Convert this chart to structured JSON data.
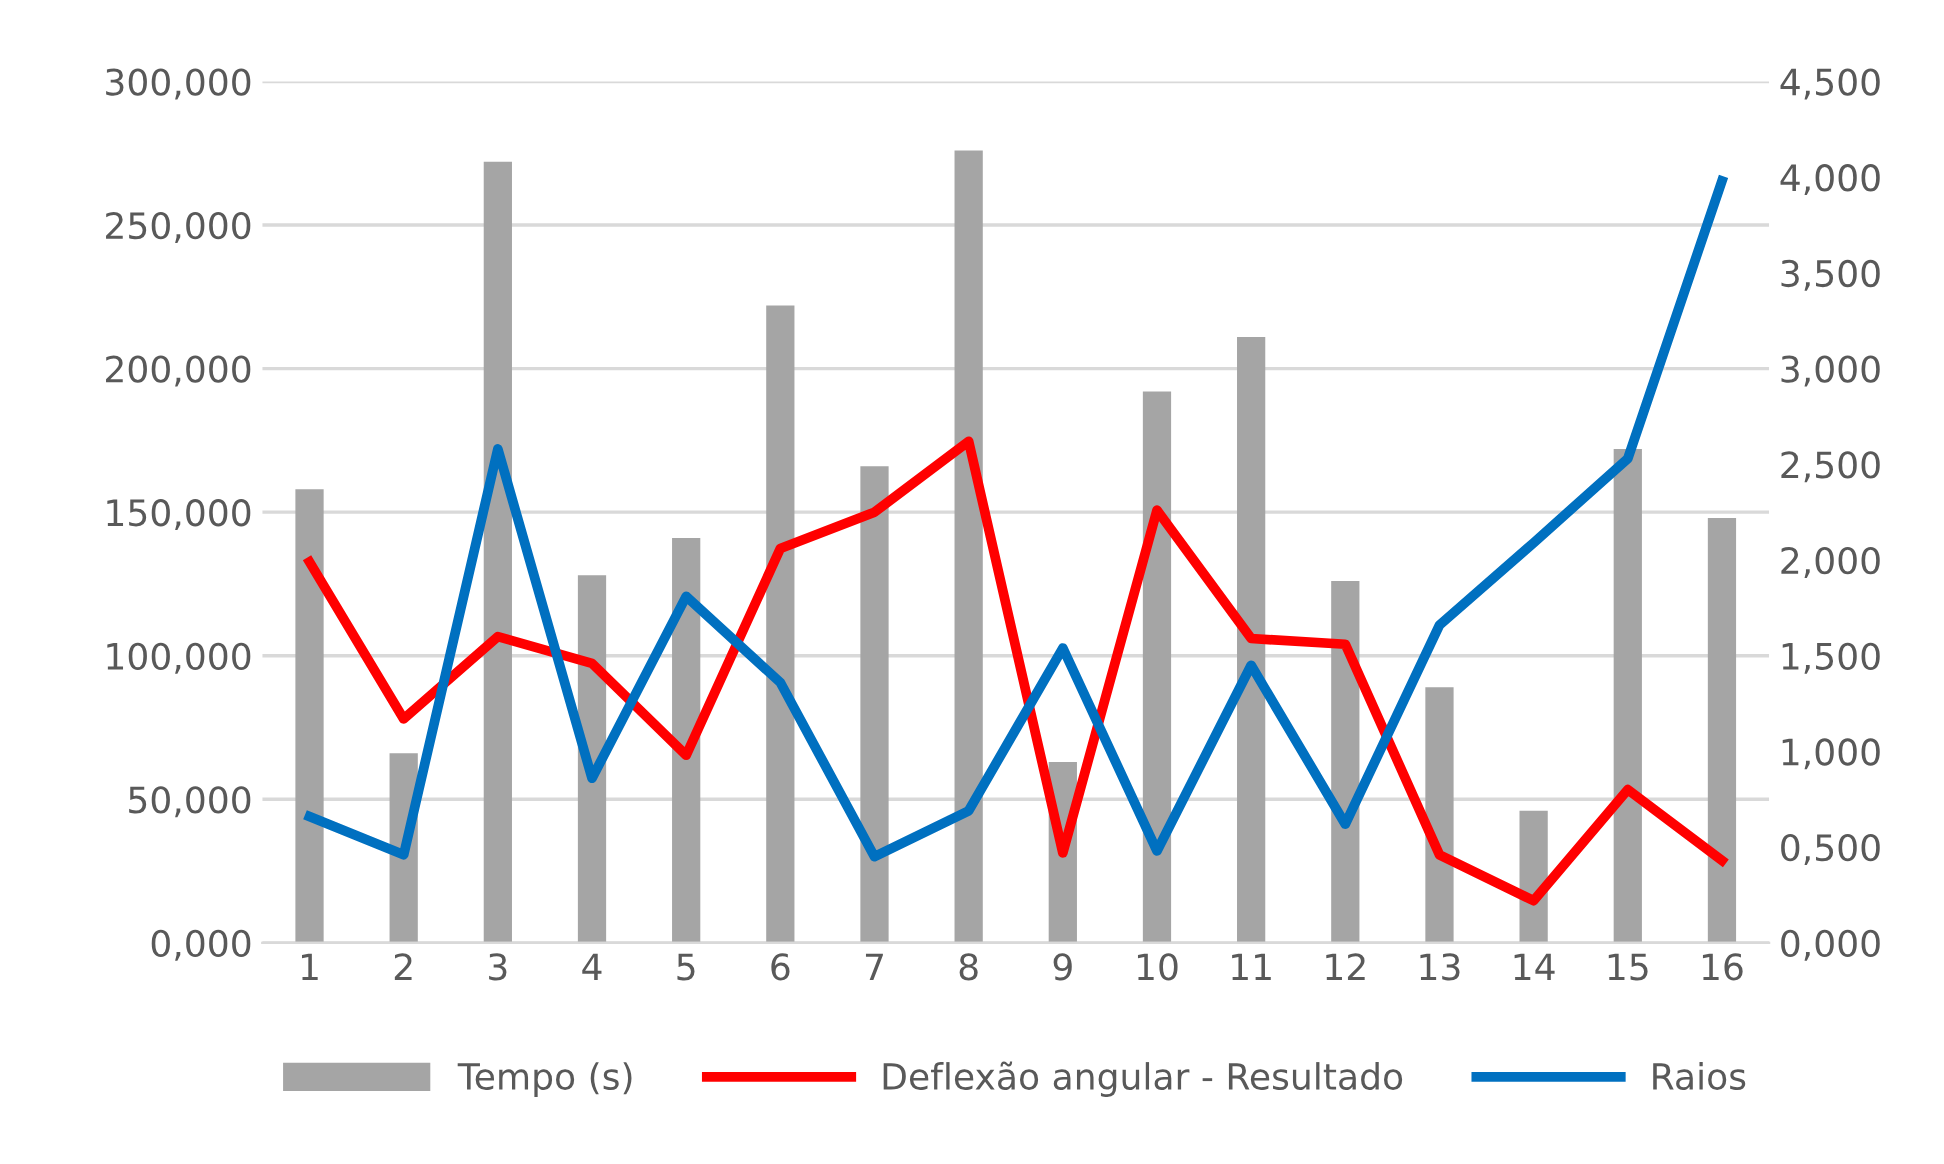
{
  "chart_data": {
    "type": "bar",
    "categories": [
      "1",
      "2",
      "3",
      "4",
      "5",
      "6",
      "7",
      "8",
      "9",
      "10",
      "11",
      "12",
      "13",
      "14",
      "15",
      "16"
    ],
    "series": [
      {
        "name": "Tempo (s)",
        "color": "#a5a5a5",
        "values": [
          158,
          66,
          272,
          128,
          141,
          222,
          166,
          276,
          63,
          192,
          211,
          126,
          89,
          46,
          172,
          148
        ]
      },
      {
        "name": "Deflexão angular - Resultado",
        "type": "line",
        "axis": "y2",
        "color": "#ff0000",
        "values": [
          1.99,
          1.17,
          1.6,
          1.46,
          0.98,
          2.06,
          2.25,
          2.62,
          0.47,
          2.26,
          1.59,
          1.56,
          0.46,
          0.22,
          0.8,
          0.43
        ]
      },
      {
        "name": "Raios",
        "type": "line",
        "axis": "y2",
        "color": "#0070c0",
        "values": [
          0.66,
          0.46,
          2.58,
          0.86,
          1.81,
          1.36,
          0.45,
          0.69,
          1.54,
          0.48,
          1.45,
          0.62,
          1.66,
          2.09,
          2.53,
          3.98
        ]
      }
    ],
    "ylim": [
      0,
      300
    ],
    "yticks": [
      {
        "value": 0,
        "label": "0,000"
      },
      {
        "value": 50,
        "label": "50,000"
      },
      {
        "value": 100,
        "label": "100,000"
      },
      {
        "value": 150,
        "label": "150,000"
      },
      {
        "value": 200,
        "label": "200,000"
      },
      {
        "value": 250,
        "label": "250,000"
      },
      {
        "value": 300,
        "label": "300,000"
      }
    ],
    "y2lim": [
      0,
      4.5
    ],
    "y2ticks": [
      {
        "value": 0,
        "label": "0,000"
      },
      {
        "value": 0.5,
        "label": "0,500"
      },
      {
        "value": 1,
        "label": "1,000"
      },
      {
        "value": 1.5,
        "label": "1,500"
      },
      {
        "value": 2,
        "label": "2,000"
      },
      {
        "value": 2.5,
        "label": "2,500"
      },
      {
        "value": 3,
        "label": "3,000"
      },
      {
        "value": 3.5,
        "label": "3,500"
      },
      {
        "value": 4,
        "label": "4,000"
      },
      {
        "value": 4.5,
        "label": "4,500"
      }
    ],
    "grid": "y",
    "legend": "bottom",
    "marker": "none",
    "line_style": "solid"
  }
}
